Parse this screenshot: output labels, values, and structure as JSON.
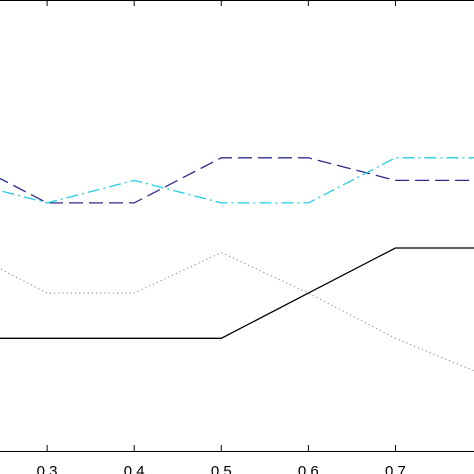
{
  "chart_data": {
    "type": "line",
    "x": [
      0.2,
      0.3,
      0.4,
      0.5,
      0.6,
      0.7,
      0.8
    ],
    "xticks": [
      0.3,
      0.4,
      0.5,
      0.6,
      0.7
    ],
    "xtick_labels": [
      "0.3",
      "0.4",
      "0.5",
      "0.6",
      "0.7"
    ],
    "xlim": [
      0.2459,
      0.7902
    ],
    "ylim": [
      0.0,
      1.0
    ],
    "grid": false,
    "legend": "none",
    "series": [
      {
        "style": "solid",
        "color": "#000000",
        "values": [
          0.25,
          0.25,
          0.25,
          0.25,
          0.35,
          0.45,
          0.45
        ]
      },
      {
        "style": "dotted",
        "color": "#8a7f96",
        "values": [
          0.45,
          0.35,
          0.35,
          0.44,
          0.35,
          0.25,
          0.17
        ]
      },
      {
        "style": "dashed",
        "color": "#2e2e8a",
        "values": [
          0.65,
          0.55,
          0.55,
          0.65,
          0.65,
          0.6,
          0.6
        ]
      },
      {
        "style": "dash-dot",
        "color": "#22cfe0",
        "values": [
          0.6,
          0.55,
          0.6,
          0.55,
          0.55,
          0.65,
          0.65
        ]
      }
    ]
  }
}
